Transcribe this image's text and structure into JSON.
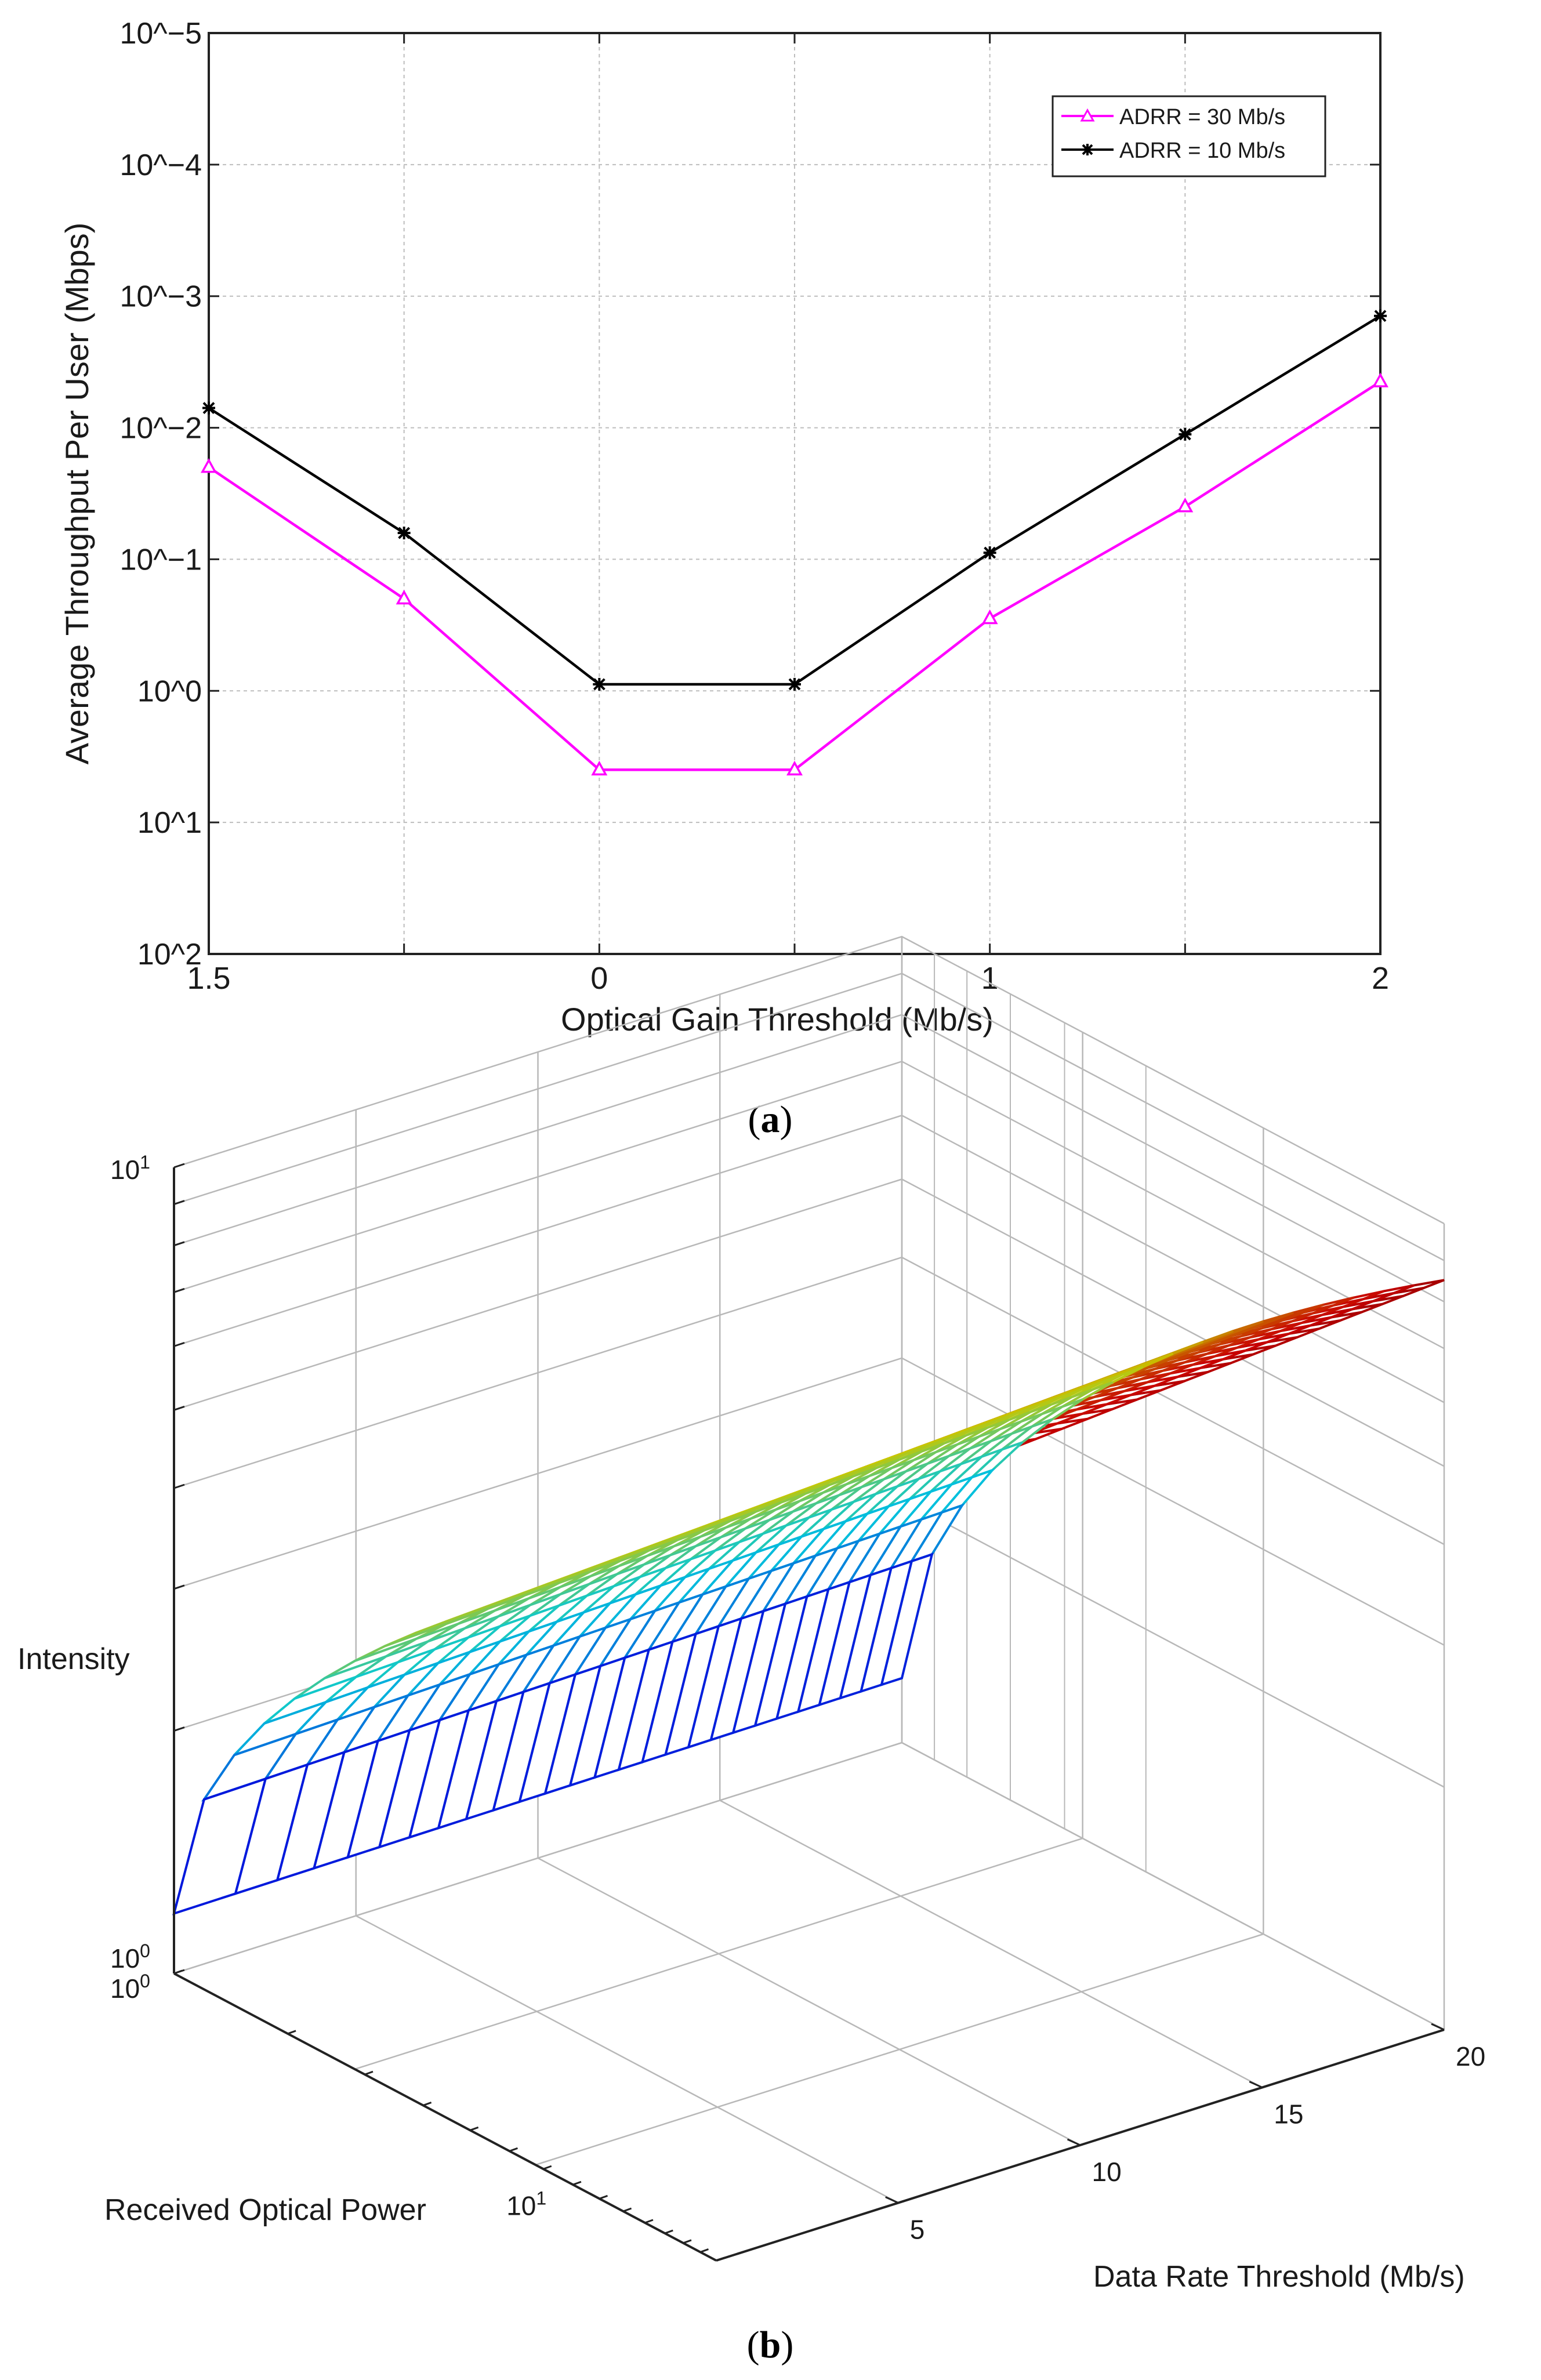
{
  "chart_data": [
    {
      "type": "line",
      "panel_label": "a",
      "title": "",
      "xlabel": "Optical Gain Threshold (Mb/s)",
      "ylabel": "Average Throughput Per User (Mbps)",
      "x": [
        0,
        1,
        2,
        3,
        4,
        5,
        6
      ],
      "xtick_labels": [
        "1.5",
        "",
        "0",
        "",
        "1",
        "",
        "2"
      ],
      "ytick_labels": [
        "10^−5",
        "10^−4",
        "10^−3",
        "10^−2",
        "10^−1",
        "10^0",
        "10^1",
        "10^2"
      ],
      "ylim": [
        0,
        7
      ],
      "grid": true,
      "legend_position": "top-right",
      "series": [
        {
          "name": "ADRR = 30 Mb/s",
          "color": "#ff00ff",
          "marker": "triangle",
          "values": [
            3.3,
            4.3,
            5.6,
            5.6,
            4.45,
            3.6,
            2.65
          ]
        },
        {
          "name": "ADRR = 10 Mb/s",
          "color": "#000000",
          "marker": "asterisk",
          "values": [
            2.85,
            3.8,
            4.95,
            4.95,
            3.95,
            3.05,
            2.15
          ]
        }
      ]
    },
    {
      "type": "surface",
      "panel_label": "b",
      "title": "",
      "xlabel": "Received Optical Power",
      "ylabel": "Data Rate Threshold (Mb/s)",
      "zlabel": "Intensity",
      "x_tick_labels": [
        "10^0",
        "10^1"
      ],
      "y_tick_labels": [
        "5",
        "10",
        "15",
        "20"
      ],
      "z_tick_labels": [
        "10^0",
        "10^1"
      ],
      "colormap": "jet",
      "rows": 18,
      "cols": 27
    }
  ]
}
